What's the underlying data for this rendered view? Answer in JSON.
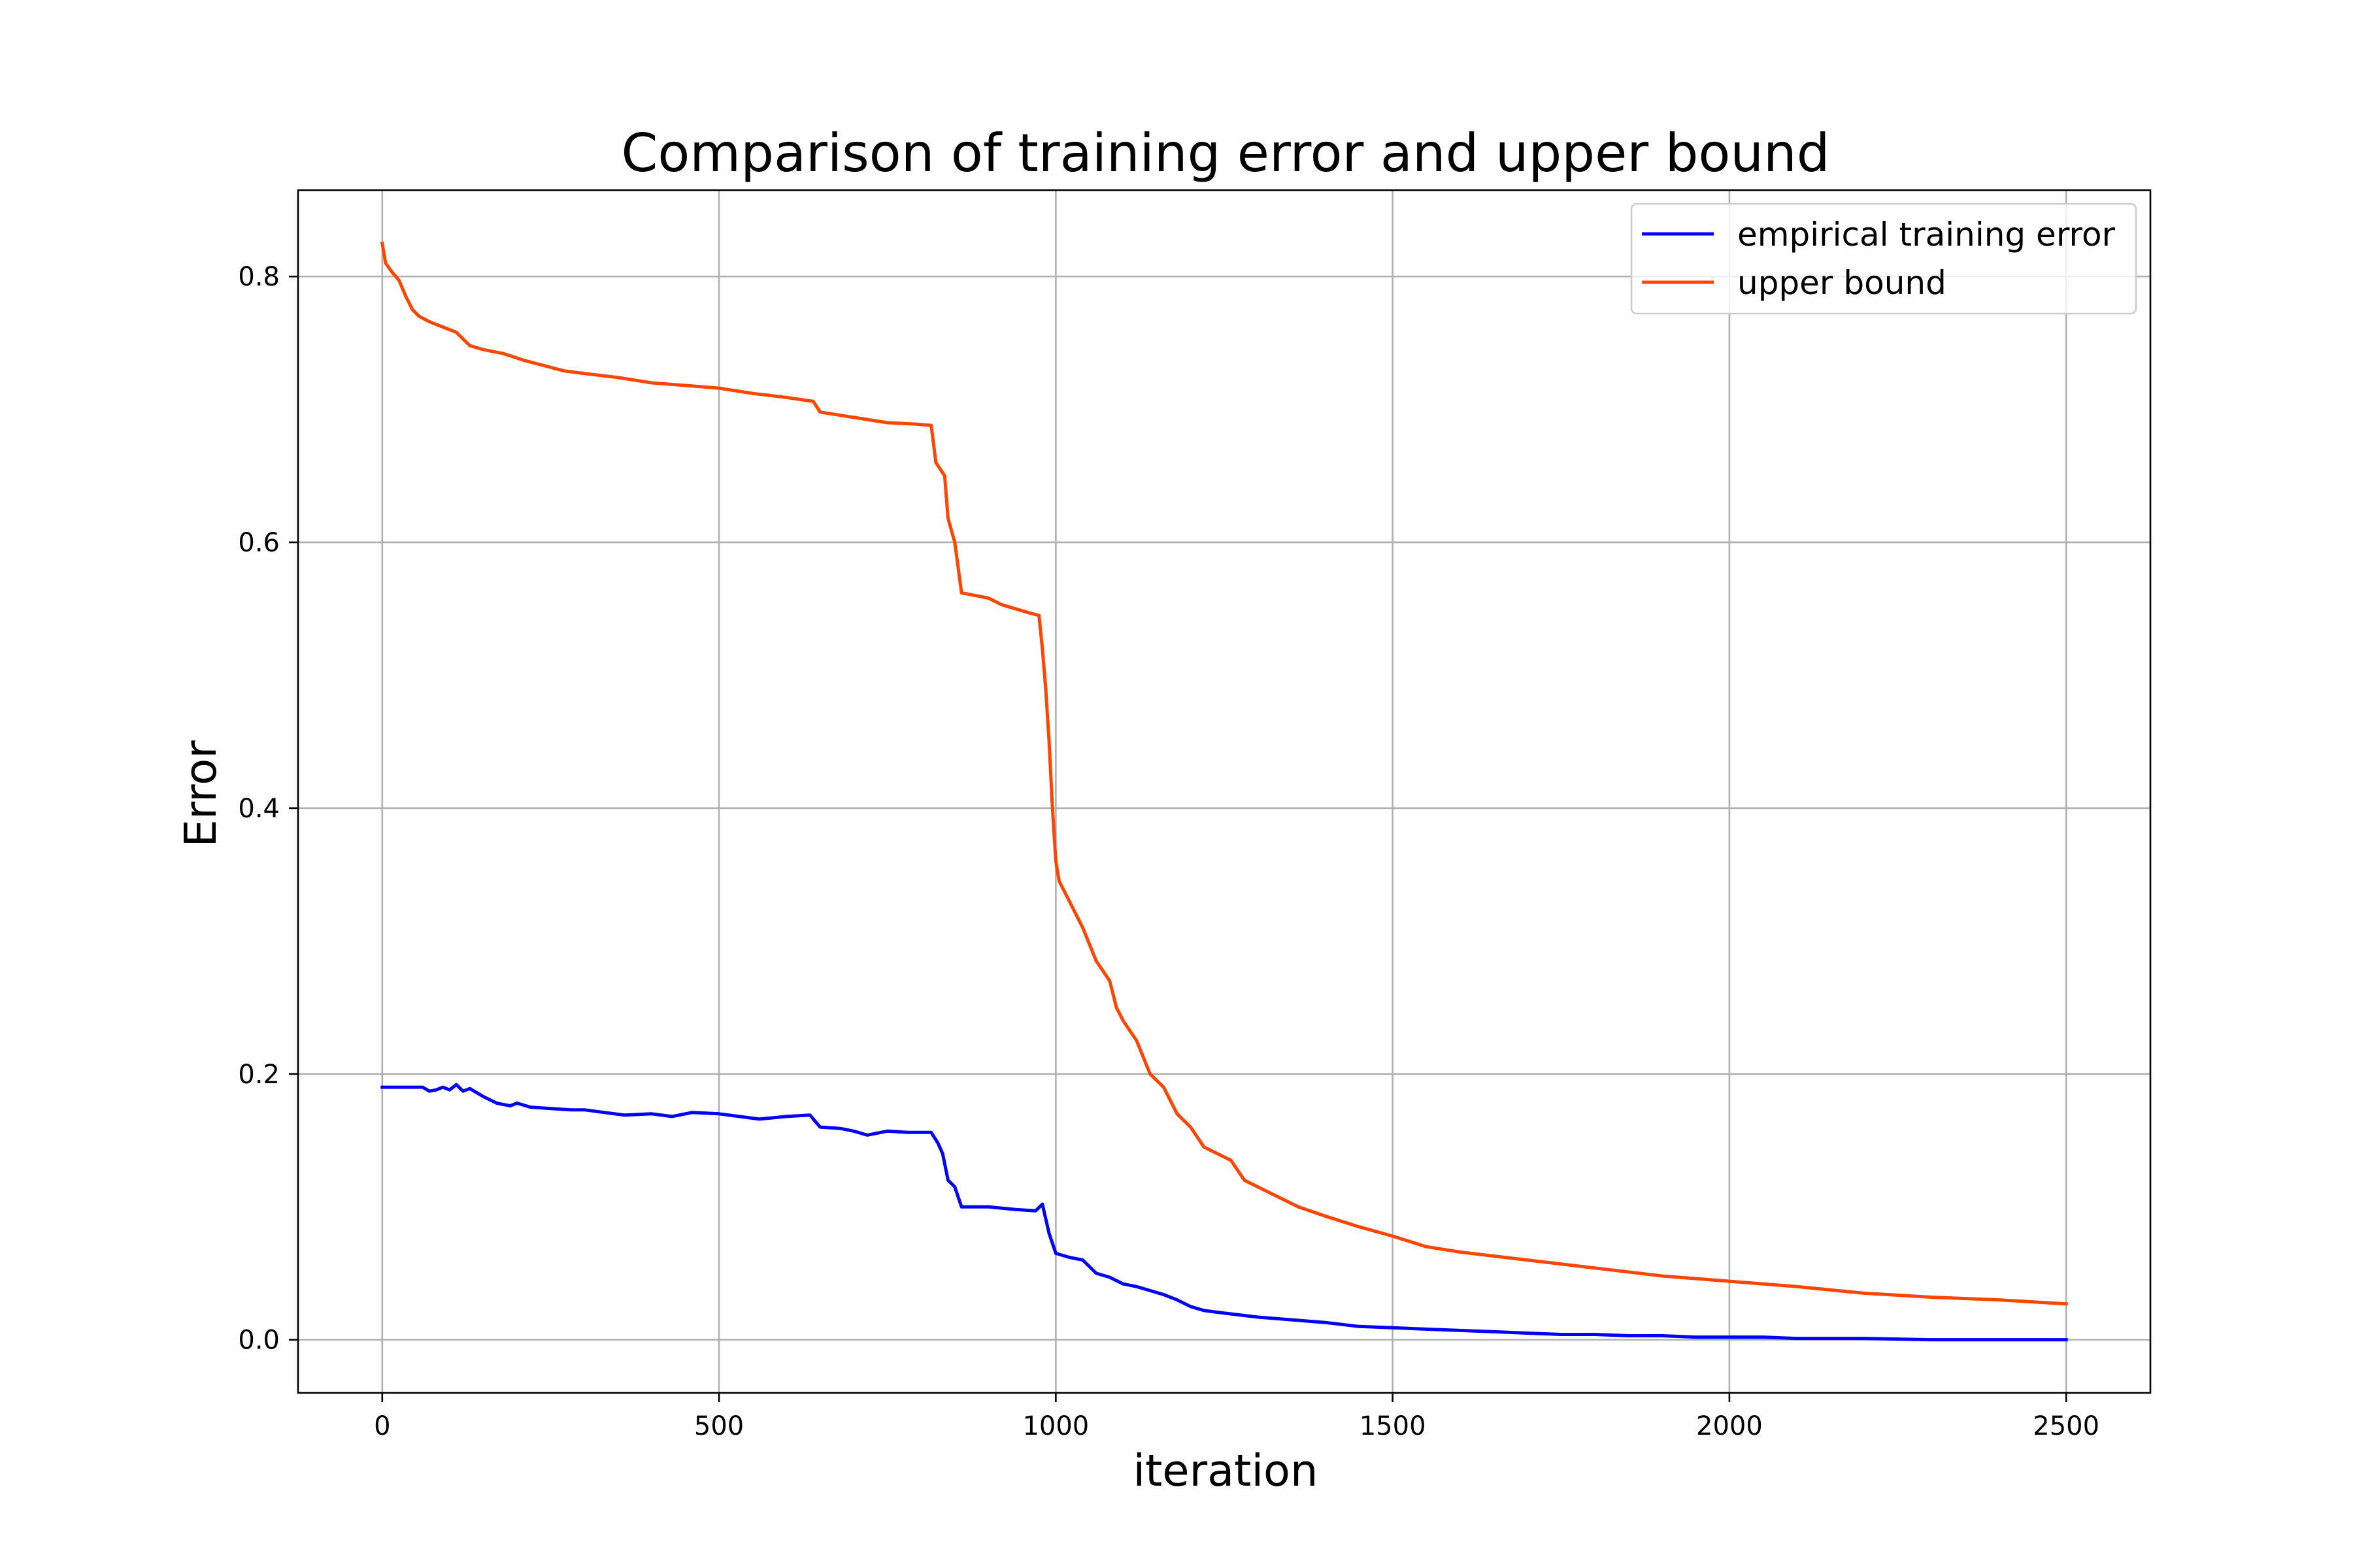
{
  "chart_data": {
    "type": "line",
    "title": "Comparison of training error and upper bound",
    "xlabel": "iteration",
    "ylabel": "Error",
    "xlim": [
      -125,
      2625
    ],
    "ylim": [
      -0.04,
      0.865
    ],
    "xticks": [
      0,
      500,
      1000,
      1500,
      2000,
      2500
    ],
    "yticks": [
      0.0,
      0.2,
      0.4,
      0.6,
      0.8
    ],
    "xtick_labels": [
      "0",
      "500",
      "1000",
      "1500",
      "2000",
      "2500"
    ],
    "ytick_labels": [
      "0.0",
      "0.2",
      "0.4",
      "0.6",
      "0.8"
    ],
    "grid": true,
    "legend_position": "upper right",
    "series": [
      {
        "name": "empirical training error",
        "color": "#0000ff",
        "points": [
          [
            0,
            0.19
          ],
          [
            60,
            0.19
          ],
          [
            70,
            0.187
          ],
          [
            80,
            0.188
          ],
          [
            90,
            0.19
          ],
          [
            100,
            0.188
          ],
          [
            110,
            0.192
          ],
          [
            120,
            0.187
          ],
          [
            130,
            0.189
          ],
          [
            150,
            0.183
          ],
          [
            170,
            0.178
          ],
          [
            190,
            0.176
          ],
          [
            200,
            0.178
          ],
          [
            220,
            0.175
          ],
          [
            250,
            0.174
          ],
          [
            280,
            0.173
          ],
          [
            300,
            0.173
          ],
          [
            330,
            0.171
          ],
          [
            360,
            0.169
          ],
          [
            400,
            0.17
          ],
          [
            430,
            0.168
          ],
          [
            460,
            0.171
          ],
          [
            500,
            0.17
          ],
          [
            530,
            0.168
          ],
          [
            560,
            0.166
          ],
          [
            600,
            0.168
          ],
          [
            635,
            0.169
          ],
          [
            650,
            0.16
          ],
          [
            680,
            0.159
          ],
          [
            700,
            0.157
          ],
          [
            720,
            0.154
          ],
          [
            750,
            0.157
          ],
          [
            780,
            0.156
          ],
          [
            815,
            0.156
          ],
          [
            825,
            0.148
          ],
          [
            832,
            0.14
          ],
          [
            840,
            0.12
          ],
          [
            850,
            0.115
          ],
          [
            860,
            0.1
          ],
          [
            900,
            0.1
          ],
          [
            940,
            0.098
          ],
          [
            970,
            0.097
          ],
          [
            980,
            0.102
          ],
          [
            990,
            0.08
          ],
          [
            1000,
            0.065
          ],
          [
            1020,
            0.062
          ],
          [
            1040,
            0.06
          ],
          [
            1060,
            0.05
          ],
          [
            1080,
            0.047
          ],
          [
            1100,
            0.042
          ],
          [
            1120,
            0.04
          ],
          [
            1140,
            0.037
          ],
          [
            1160,
            0.034
          ],
          [
            1180,
            0.03
          ],
          [
            1200,
            0.025
          ],
          [
            1220,
            0.022
          ],
          [
            1250,
            0.02
          ],
          [
            1300,
            0.017
          ],
          [
            1350,
            0.015
          ],
          [
            1400,
            0.013
          ],
          [
            1450,
            0.01
          ],
          [
            1500,
            0.009
          ],
          [
            1550,
            0.008
          ],
          [
            1600,
            0.007
          ],
          [
            1650,
            0.006
          ],
          [
            1700,
            0.005
          ],
          [
            1750,
            0.004
          ],
          [
            1800,
            0.004
          ],
          [
            1850,
            0.003
          ],
          [
            1900,
            0.003
          ],
          [
            1950,
            0.002
          ],
          [
            2000,
            0.002
          ],
          [
            2050,
            0.002
          ],
          [
            2100,
            0.001
          ],
          [
            2200,
            0.001
          ],
          [
            2300,
            0.0
          ],
          [
            2500,
            0.0
          ]
        ]
      },
      {
        "name": "upper bound",
        "color": "#ff4500",
        "points": [
          [
            0,
            0.825
          ],
          [
            5,
            0.81
          ],
          [
            15,
            0.803
          ],
          [
            25,
            0.797
          ],
          [
            35,
            0.785
          ],
          [
            45,
            0.775
          ],
          [
            55,
            0.77
          ],
          [
            70,
            0.766
          ],
          [
            90,
            0.762
          ],
          [
            110,
            0.758
          ],
          [
            130,
            0.748
          ],
          [
            150,
            0.745
          ],
          [
            180,
            0.742
          ],
          [
            210,
            0.737
          ],
          [
            240,
            0.733
          ],
          [
            270,
            0.729
          ],
          [
            300,
            0.727
          ],
          [
            350,
            0.724
          ],
          [
            400,
            0.72
          ],
          [
            450,
            0.718
          ],
          [
            500,
            0.716
          ],
          [
            550,
            0.712
          ],
          [
            600,
            0.709
          ],
          [
            640,
            0.706
          ],
          [
            650,
            0.698
          ],
          [
            700,
            0.694
          ],
          [
            750,
            0.69
          ],
          [
            790,
            0.689
          ],
          [
            815,
            0.688
          ],
          [
            822,
            0.66
          ],
          [
            835,
            0.65
          ],
          [
            840,
            0.618
          ],
          [
            850,
            0.6
          ],
          [
            860,
            0.562
          ],
          [
            880,
            0.56
          ],
          [
            900,
            0.558
          ],
          [
            920,
            0.553
          ],
          [
            940,
            0.55
          ],
          [
            960,
            0.547
          ],
          [
            975,
            0.545
          ],
          [
            980,
            0.52
          ],
          [
            985,
            0.49
          ],
          [
            990,
            0.45
          ],
          [
            995,
            0.4
          ],
          [
            1000,
            0.36
          ],
          [
            1005,
            0.345
          ],
          [
            1020,
            0.33
          ],
          [
            1040,
            0.31
          ],
          [
            1060,
            0.285
          ],
          [
            1080,
            0.27
          ],
          [
            1090,
            0.25
          ],
          [
            1100,
            0.24
          ],
          [
            1120,
            0.225
          ],
          [
            1140,
            0.2
          ],
          [
            1160,
            0.19
          ],
          [
            1180,
            0.17
          ],
          [
            1200,
            0.16
          ],
          [
            1220,
            0.145
          ],
          [
            1260,
            0.135
          ],
          [
            1280,
            0.12
          ],
          [
            1320,
            0.11
          ],
          [
            1360,
            0.1
          ],
          [
            1400,
            0.093
          ],
          [
            1450,
            0.085
          ],
          [
            1500,
            0.078
          ],
          [
            1550,
            0.07
          ],
          [
            1600,
            0.066
          ],
          [
            1700,
            0.06
          ],
          [
            1800,
            0.054
          ],
          [
            1900,
            0.048
          ],
          [
            2000,
            0.044
          ],
          [
            2100,
            0.04
          ],
          [
            2200,
            0.035
          ],
          [
            2300,
            0.032
          ],
          [
            2400,
            0.03
          ],
          [
            2500,
            0.027
          ]
        ]
      }
    ]
  }
}
